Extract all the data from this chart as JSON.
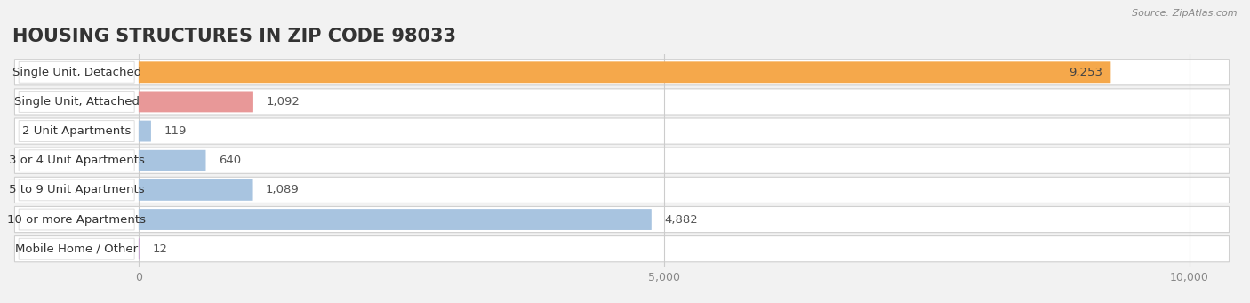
{
  "title": "HOUSING STRUCTURES IN ZIP CODE 98033",
  "source": "Source: ZipAtlas.com",
  "categories": [
    "Single Unit, Detached",
    "Single Unit, Attached",
    "2 Unit Apartments",
    "3 or 4 Unit Apartments",
    "5 to 9 Unit Apartments",
    "10 or more Apartments",
    "Mobile Home / Other"
  ],
  "values": [
    9253,
    1092,
    119,
    640,
    1089,
    4882,
    12
  ],
  "bar_colors": [
    "#F5A84B",
    "#E89898",
    "#A8C4E0",
    "#A8C4E0",
    "#A8C4E0",
    "#A8C4E0",
    "#C8A8D0"
  ],
  "background_color": "#f2f2f2",
  "row_colors": [
    "#e8e8e8",
    "#f0f0f0"
  ],
  "xlim": [
    0,
    10000
  ],
  "xticks": [
    0,
    5000,
    10000
  ],
  "xticklabels": [
    "0",
    "5,000",
    "10,000"
  ],
  "title_fontsize": 15,
  "label_fontsize": 9.5,
  "value_fontsize": 9.5
}
